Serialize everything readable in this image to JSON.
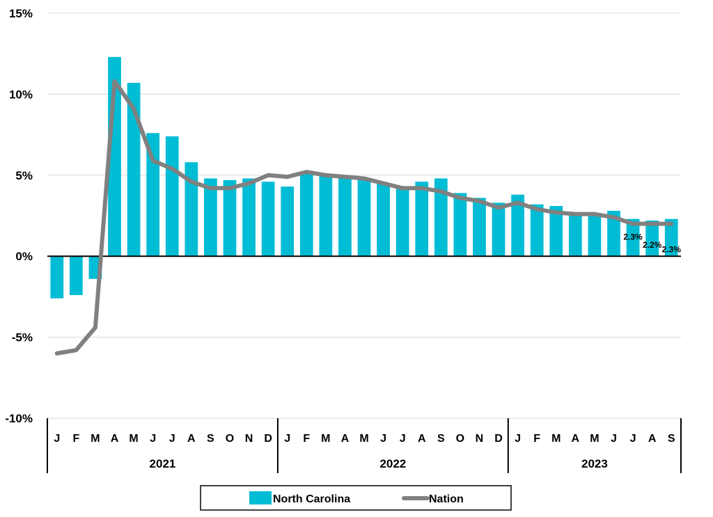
{
  "chart_data": {
    "type": "bar",
    "yticks": [
      "15%",
      "10%",
      "5%",
      "0%",
      "-5%",
      "-10%"
    ],
    "ylim": [
      -10,
      15
    ],
    "grid": true,
    "categories": [
      "J",
      "F",
      "M",
      "A",
      "M",
      "J",
      "J",
      "A",
      "S",
      "O",
      "N",
      "D",
      "J",
      "F",
      "M",
      "A",
      "M",
      "J",
      "J",
      "A",
      "S",
      "O",
      "N",
      "D",
      "J",
      "F",
      "M",
      "A",
      "M",
      "J",
      "J",
      "A",
      "S"
    ],
    "years": [
      {
        "label": "2021",
        "start": 0,
        "end": 11
      },
      {
        "label": "2022",
        "start": 12,
        "end": 23
      },
      {
        "label": "2023",
        "start": 24,
        "end": 32
      }
    ],
    "series": [
      {
        "name": "North Carolina",
        "type": "bar",
        "color": "#00BCD4",
        "values": [
          -2.6,
          -2.4,
          -1.4,
          12.3,
          10.7,
          7.6,
          7.4,
          5.8,
          4.8,
          4.7,
          4.8,
          4.6,
          4.3,
          5.2,
          5.0,
          4.9,
          4.8,
          4.5,
          4.2,
          4.6,
          4.8,
          3.9,
          3.6,
          3.3,
          3.8,
          3.2,
          3.1,
          2.6,
          2.6,
          2.8,
          2.3,
          2.2,
          2.3
        ]
      },
      {
        "name": "Nation",
        "type": "line",
        "color": "#808080",
        "values": [
          -6.0,
          -5.8,
          -4.4,
          10.8,
          9.1,
          5.9,
          5.4,
          4.6,
          4.2,
          4.2,
          4.5,
          5.0,
          4.9,
          5.2,
          5.0,
          4.9,
          4.8,
          4.5,
          4.2,
          4.2,
          4.0,
          3.6,
          3.4,
          3.0,
          3.3,
          2.9,
          2.7,
          2.6,
          2.6,
          2.4,
          2.0,
          2.0,
          2.0
        ]
      }
    ],
    "data_labels": [
      {
        "index": 30,
        "text": "2.3%"
      },
      {
        "index": 31,
        "text": "2.2%"
      },
      {
        "index": 32,
        "text": "2.3%"
      }
    ],
    "legend": {
      "position": "bottom",
      "items": [
        "North Carolina",
        "Nation"
      ]
    }
  }
}
